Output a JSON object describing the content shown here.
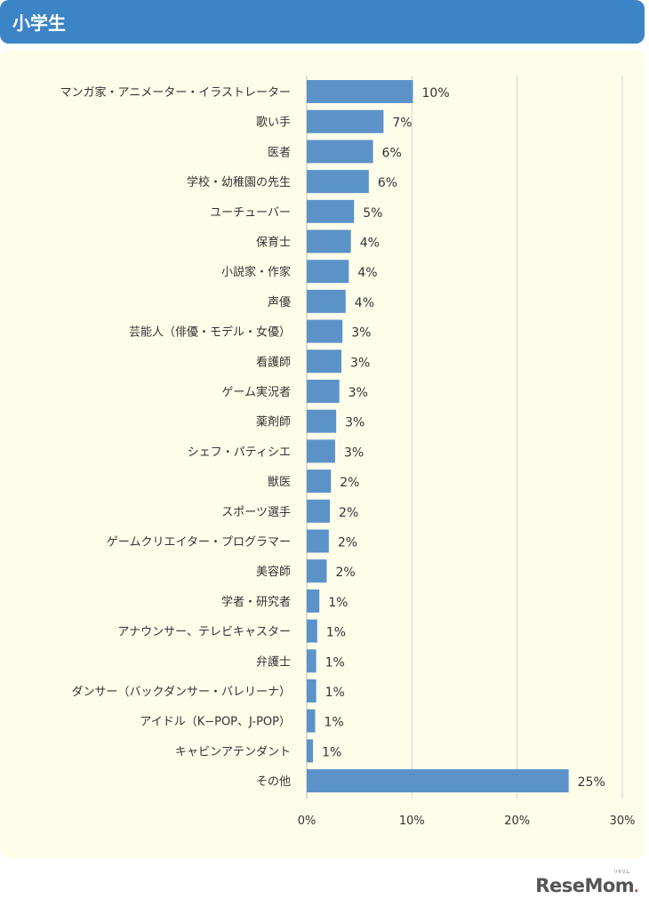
{
  "header": {
    "title": "小学生"
  },
  "chart_data": {
    "type": "bar",
    "orientation": "horizontal",
    "categories": [
      "マンガ家・アニメーター・イラストレーター",
      "歌い手",
      "医者",
      "学校・幼稚園の先生",
      "ユーチューバー",
      "保育士",
      "小説家・作家",
      "声優",
      "芸能人（俳優・モデル・女優）",
      "看護師",
      "ゲーム実況者",
      "薬剤師",
      "シェフ・パティシエ",
      "獣医",
      "スポーツ選手",
      "ゲームクリエイター・プログラマー",
      "美容師",
      "学者・研究者",
      "アナウンサー、テレビキャスター",
      "弁護士",
      "ダンサー（バックダンサー・バレリーナ）",
      "アイドル（K−POP、J-POP）",
      "キャビンアテンダント",
      "その他"
    ],
    "values": [
      10.1,
      7.3,
      6.3,
      5.9,
      4.5,
      4.2,
      4.0,
      3.7,
      3.4,
      3.3,
      3.1,
      2.8,
      2.7,
      2.3,
      2.2,
      2.1,
      1.9,
      1.2,
      1.0,
      0.9,
      0.9,
      0.8,
      0.6,
      24.9
    ],
    "value_labels": [
      "10%",
      "7%",
      "6%",
      "6%",
      "5%",
      "4%",
      "4%",
      "4%",
      "3%",
      "3%",
      "3%",
      "3%",
      "3%",
      "2%",
      "2%",
      "2%",
      "2%",
      "1%",
      "1%",
      "1%",
      "1%",
      "1%",
      "1%",
      "25%"
    ],
    "xlim": [
      0,
      30
    ],
    "xticks": [
      0,
      10,
      20,
      30
    ],
    "xtick_labels": [
      "0%",
      "10%",
      "20%",
      "30%"
    ],
    "grid": true,
    "bar_color": "#5b93c9",
    "grid_color": "#d6d6d6",
    "title": "",
    "xlabel": "",
    "ylabel": ""
  },
  "logo": {
    "text": "ReseMom",
    "kana": "リセマム"
  },
  "colors": {
    "header": "#3b84c5",
    "panel": "#fefdea",
    "bar": "#5b93c9"
  }
}
